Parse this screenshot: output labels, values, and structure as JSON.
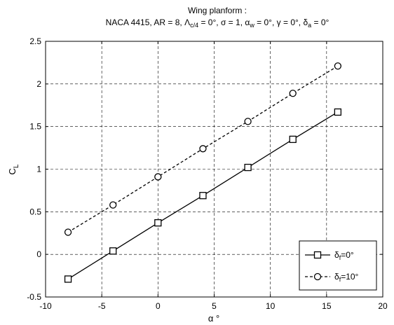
{
  "chart_data": {
    "type": "line",
    "title_line1": "Wing planform :",
    "title_line2": {
      "prefix": "NACA 4415, AR = 8, ",
      "sweep_symbol": "Λ",
      "sweep_sub": "c/4",
      "sweep_value": " = 0°, ",
      "sigma": "σ = 1, ",
      "alpha_symbol": "α",
      "alpha_sub": "w",
      "alpha_value": " = 0°, ",
      "gamma": "γ = 0°, ",
      "delta_symbol": "δ",
      "delta_sub": "a",
      "delta_value": " = 0°"
    },
    "xlabel": "α °",
    "ylabel_main": "C",
    "ylabel_sub": "L",
    "xlim": [
      -10,
      20
    ],
    "ylim": [
      -0.5,
      2.5
    ],
    "xticks": [
      "-10",
      "-5",
      "0",
      "5",
      "10",
      "15",
      "20"
    ],
    "yticks": [
      "-0.5",
      "0",
      "0.5",
      "1",
      "1.5",
      "2",
      "2.5"
    ],
    "grid": true,
    "legend_position": "bottom-right",
    "series": [
      {
        "legend_symbol": "δ",
        "legend_sub": "f",
        "legend_value": "=0°",
        "marker": "square",
        "line_style": "solid",
        "color": "#000000",
        "x": [
          -8,
          -4,
          0,
          4,
          8,
          12,
          16
        ],
        "y": [
          -0.29,
          0.04,
          0.37,
          0.69,
          1.02,
          1.35,
          1.67
        ]
      },
      {
        "legend_symbol": "δ",
        "legend_sub": "f",
        "legend_value": "=10°",
        "marker": "circle",
        "line_style": "dashed",
        "color": "#000000",
        "x": [
          -8,
          -4,
          0,
          4,
          8,
          12,
          16
        ],
        "y": [
          0.26,
          0.58,
          0.91,
          1.24,
          1.56,
          1.89,
          2.21
        ]
      }
    ]
  }
}
